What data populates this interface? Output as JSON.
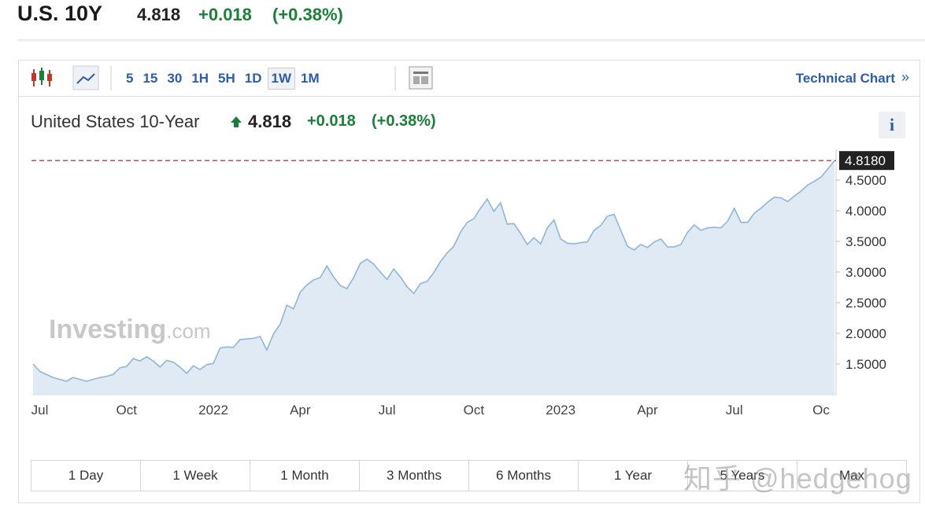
{
  "header": {
    "symbol": "U.S. 10Y",
    "price": "4.818",
    "change": "+0.018",
    "change_pct": "(+0.38%)"
  },
  "toolbar": {
    "intervals": [
      "5",
      "15",
      "30",
      "1H",
      "5H",
      "1D",
      "1W",
      "1M"
    ],
    "link": "Technical Chart",
    "link_arrow": "»"
  },
  "chart_data": {
    "type": "area",
    "title": "United States 10-Year",
    "last": "4.818",
    "change": "+0.018",
    "change_pct": "(+0.38%)",
    "last_label": "4.8180",
    "categories": [
      null,
      "Jul",
      null,
      null,
      null,
      null,
      null,
      null,
      null,
      null,
      null,
      null,
      null,
      null,
      "Oct",
      null,
      null,
      null,
      null,
      null,
      null,
      null,
      null,
      null,
      null,
      null,
      null,
      "2022",
      null,
      null,
      null,
      null,
      null,
      null,
      null,
      null,
      null,
      null,
      null,
      null,
      "Apr",
      null,
      null,
      null,
      null,
      null,
      null,
      null,
      null,
      null,
      null,
      null,
      null,
      "Jul",
      null,
      null,
      null,
      null,
      null,
      null,
      null,
      null,
      null,
      null,
      null,
      null,
      "Oct",
      null,
      null,
      null,
      null,
      null,
      null,
      null,
      null,
      null,
      null,
      null,
      null,
      "2023",
      null,
      null,
      null,
      null,
      null,
      null,
      null,
      null,
      null,
      null,
      null,
      null,
      "Apr",
      null,
      null,
      null,
      null,
      null,
      null,
      null,
      null,
      null,
      null,
      null,
      null,
      "Jul",
      null,
      null,
      null,
      null,
      null,
      null,
      null,
      null,
      null,
      null,
      null,
      null,
      "Oc",
      null,
      null
    ],
    "values": [
      1.5,
      1.38,
      1.33,
      1.28,
      1.25,
      1.22,
      1.28,
      1.25,
      1.22,
      1.25,
      1.28,
      1.3,
      1.33,
      1.44,
      1.46,
      1.59,
      1.55,
      1.62,
      1.55,
      1.45,
      1.56,
      1.53,
      1.45,
      1.35,
      1.47,
      1.41,
      1.49,
      1.51,
      1.76,
      1.78,
      1.77,
      1.9,
      1.91,
      1.92,
      1.95,
      1.73,
      1.99,
      2.15,
      2.46,
      2.4,
      2.67,
      2.79,
      2.87,
      2.91,
      3.1,
      2.92,
      2.78,
      2.73,
      2.91,
      3.14,
      3.21,
      3.13,
      3.0,
      2.88,
      3.05,
      2.92,
      2.76,
      2.65,
      2.81,
      2.85,
      2.99,
      3.17,
      3.31,
      3.42,
      3.65,
      3.81,
      3.87,
      4.04,
      4.19,
      3.99,
      4.13,
      3.78,
      3.79,
      3.63,
      3.45,
      3.56,
      3.46,
      3.72,
      3.85,
      3.54,
      3.47,
      3.46,
      3.48,
      3.49,
      3.68,
      3.76,
      3.91,
      3.94,
      3.68,
      3.42,
      3.36,
      3.45,
      3.4,
      3.49,
      3.54,
      3.41,
      3.41,
      3.45,
      3.65,
      3.77,
      3.68,
      3.72,
      3.73,
      3.72,
      3.83,
      4.04,
      3.81,
      3.81,
      3.96,
      4.04,
      4.14,
      4.22,
      4.21,
      4.15,
      4.24,
      4.32,
      4.42,
      4.48,
      4.55,
      4.68,
      4.818
    ],
    "color": "#8db6da",
    "fill_color": "#dfeaf4",
    "last_line_color": "#c0504d",
    "ylim": [
      1.0,
      5.0
    ],
    "yticks": [
      {
        "value": 1.5,
        "label": "1.5000"
      },
      {
        "value": 2.0,
        "label": "2.0000"
      },
      {
        "value": 2.5,
        "label": "2.5000"
      },
      {
        "value": 3.0,
        "label": "3.0000"
      },
      {
        "value": 3.5,
        "label": "3.5000"
      },
      {
        "value": 4.0,
        "label": "4.0000"
      },
      {
        "value": 4.5,
        "label": "4.5000"
      }
    ],
    "watermark": {
      "brand": "Investing",
      "suffix": ".com"
    }
  },
  "ranges": [
    "1 Day",
    "1 Week",
    "1 Month",
    "3 Months",
    "6 Months",
    "1 Year",
    "5 Years",
    "Max"
  ],
  "overlay": "知乎 @hedgehog"
}
